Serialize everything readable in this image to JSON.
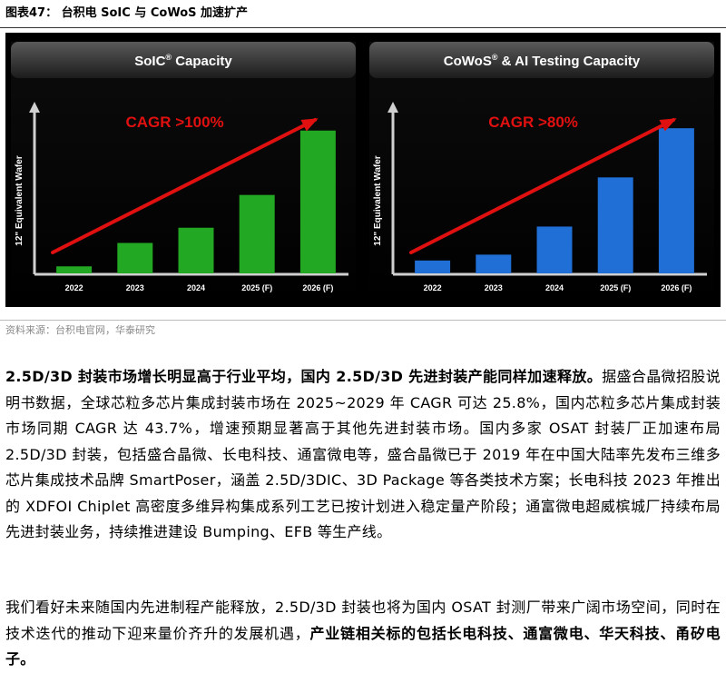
{
  "figure_title": "图表47：  台积电 SoIC 与 CoWoS 加速扩产",
  "chart_data": [
    {
      "type": "bar",
      "title": "SoIC",
      "title_mark": "®",
      "title_suffix": " Capacity",
      "ylabel": "12\" Equivalent Wafer",
      "categories": [
        "2022",
        "2023",
        "2024",
        "2025 (F)",
        "2026 (F)"
      ],
      "values": [
        0.6,
        2.6,
        3.9,
        6.7,
        12.2
      ],
      "ylim": [
        0,
        13.5
      ],
      "annotation": "CAGR >100%",
      "bar_color": "#22a822",
      "grid": false
    },
    {
      "type": "bar",
      "title": "CoWoS",
      "title_mark": "®",
      "title_suffix": " & AI Testing Capacity",
      "ylabel": "12\" Equivalent Wafer",
      "categories": [
        "2022",
        "2023",
        "2024",
        "2025 (F)",
        "2026 (F)"
      ],
      "values": [
        1.1,
        1.6,
        4.0,
        8.2,
        12.4
      ],
      "ylim": [
        0,
        13.5
      ],
      "annotation": "CAGR >80%",
      "bar_color": "#1f6fd6",
      "grid": false
    }
  ],
  "source": "资料来源：台积电官网，华泰研究",
  "paragraph1": {
    "bold": "2.5D/3D 封装市场增长明显高于行业平均，国内 2.5D/3D 先进封装产能同样加速释放。",
    "text": "据盛合晶微招股说明书数据，全球芯粒多芯片集成封装市场在 2025~2029 年 CAGR 可达 25.8%，国内芯粒多芯片集成封装市场同期 CAGR 达 43.7%，增速预期显著高于其他先进封装市场。国内多家 OSAT 封装厂正加速布局 2.5D/3D 封装，包括盛合晶微、长电科技、通富微电等，盛合晶微已于 2019 年在中国大陆率先发布三维多芯片集成技术品牌 SmartPoser，涵盖 2.5D/3DIC、3D Package 等各类技术方案；长电科技 2023 年推出的 XDFOI Chiplet 高密度多维异构集成系列工艺已按计划进入稳定量产阶段；通富微电超威槟城厂持续布局先进封装业务，持续推进建设 Bumping、EFB 等生产线。"
  },
  "paragraph2": {
    "text": "我们看好未来随国内先进制程产能释放，2.5D/3D 封装也将为国内 OSAT 封测厂带来广阔市场空间，同时在技术迭代的推动下迎来量价齐升的发展机遇，",
    "bold": "产业链相关标的包括长电科技、通富微电、华天科技、甬矽电子。"
  }
}
